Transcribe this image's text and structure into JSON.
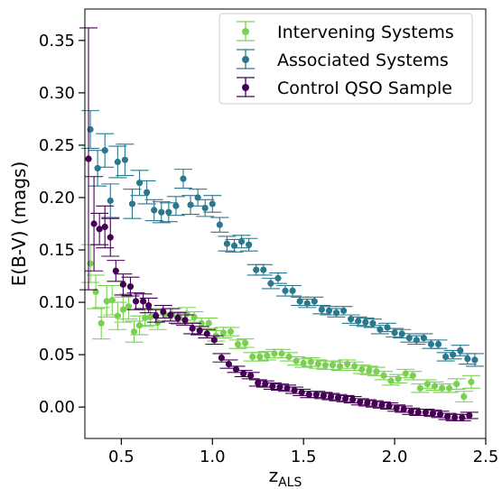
{
  "chart_data": {
    "type": "scatter",
    "title": "",
    "xlabel": "z",
    "xlabel_sub": "ALS",
    "ylabel": "E(B-V) (mags)",
    "xlim": [
      0.3,
      2.5
    ],
    "ylim": [
      -0.03,
      0.38
    ],
    "x_ticks": [
      0.5,
      1.0,
      1.5,
      2.0,
      2.5
    ],
    "x_tick_labels": [
      "0.5",
      "1.0",
      "1.5",
      "2.0",
      "2.5"
    ],
    "y_ticks": [
      0.0,
      0.05,
      0.1,
      0.15,
      0.2,
      0.25,
      0.3,
      0.35
    ],
    "y_tick_labels": [
      "0.00",
      "0.05",
      "0.10",
      "0.15",
      "0.20",
      "0.25",
      "0.30",
      "0.35"
    ],
    "grid": false,
    "legend_position": "top-right",
    "series": [
      {
        "name": "Intervening Systems",
        "color": "#7ad151",
        "x": [
          0.33,
          0.36,
          0.39,
          0.42,
          0.45,
          0.48,
          0.51,
          0.54,
          0.57,
          0.6,
          0.63,
          0.66,
          0.7,
          0.74,
          0.78,
          0.82,
          0.86,
          0.9,
          0.94,
          0.98,
          1.02,
          1.06,
          1.1,
          1.14,
          1.18,
          1.22,
          1.26,
          1.3,
          1.34,
          1.38,
          1.42,
          1.46,
          1.5,
          1.54,
          1.58,
          1.62,
          1.66,
          1.7,
          1.74,
          1.78,
          1.82,
          1.86,
          1.9,
          1.94,
          1.98,
          2.02,
          2.06,
          2.1,
          2.14,
          2.18,
          2.22,
          2.26,
          2.3,
          2.34,
          2.38,
          2.42
        ],
        "y": [
          0.137,
          0.11,
          0.08,
          0.101,
          0.102,
          0.087,
          0.093,
          0.096,
          0.072,
          0.078,
          0.085,
          0.086,
          0.081,
          0.088,
          0.088,
          0.085,
          0.089,
          0.086,
          0.08,
          0.08,
          0.068,
          0.071,
          0.072,
          0.06,
          0.061,
          0.048,
          0.048,
          0.049,
          0.051,
          0.051,
          0.048,
          0.044,
          0.042,
          0.043,
          0.041,
          0.04,
          0.04,
          0.039,
          0.041,
          0.039,
          0.036,
          0.035,
          0.034,
          0.03,
          0.025,
          0.027,
          0.032,
          0.03,
          0.018,
          0.022,
          0.02,
          0.018,
          0.018,
          0.022,
          0.01,
          0.024
        ],
        "yerr": [
          0.018,
          0.016,
          0.015,
          0.015,
          0.014,
          0.013,
          0.012,
          0.012,
          0.01,
          0.009,
          0.008,
          0.008,
          0.007,
          0.006,
          0.006,
          0.006,
          0.006,
          0.005,
          0.005,
          0.005,
          0.005,
          0.005,
          0.004,
          0.004,
          0.004,
          0.004,
          0.004,
          0.004,
          0.004,
          0.004,
          0.004,
          0.004,
          0.004,
          0.004,
          0.004,
          0.004,
          0.004,
          0.004,
          0.004,
          0.004,
          0.004,
          0.004,
          0.004,
          0.004,
          0.004,
          0.004,
          0.004,
          0.004,
          0.004,
          0.004,
          0.004,
          0.004,
          0.004,
          0.005,
          0.005,
          0.006
        ]
      },
      {
        "name": "Associated Systems",
        "color": "#2a788e",
        "x": [
          0.33,
          0.37,
          0.41,
          0.44,
          0.48,
          0.52,
          0.56,
          0.6,
          0.64,
          0.68,
          0.72,
          0.76,
          0.8,
          0.84,
          0.88,
          0.92,
          0.96,
          1.0,
          1.04,
          1.08,
          1.12,
          1.16,
          1.2,
          1.24,
          1.28,
          1.32,
          1.36,
          1.4,
          1.44,
          1.48,
          1.52,
          1.56,
          1.6,
          1.64,
          1.68,
          1.72,
          1.76,
          1.8,
          1.84,
          1.88,
          1.92,
          1.96,
          2.0,
          2.04,
          2.08,
          2.12,
          2.16,
          2.2,
          2.24,
          2.28,
          2.32,
          2.36,
          2.4,
          2.44
        ],
        "y": [
          0.265,
          0.228,
          0.245,
          0.197,
          0.234,
          0.236,
          0.194,
          0.214,
          0.205,
          0.188,
          0.186,
          0.186,
          0.192,
          0.218,
          0.193,
          0.2,
          0.19,
          0.194,
          0.174,
          0.156,
          0.154,
          0.158,
          0.155,
          0.131,
          0.131,
          0.118,
          0.123,
          0.111,
          0.111,
          0.101,
          0.099,
          0.101,
          0.093,
          0.092,
          0.09,
          0.092,
          0.084,
          0.082,
          0.081,
          0.08,
          0.074,
          0.076,
          0.071,
          0.07,
          0.066,
          0.064,
          0.066,
          0.06,
          0.06,
          0.048,
          0.05,
          0.054,
          0.046,
          0.045
        ],
        "yerr": [
          0.018,
          0.017,
          0.016,
          0.016,
          0.015,
          0.015,
          0.014,
          0.012,
          0.011,
          0.01,
          0.01,
          0.009,
          0.009,
          0.009,
          0.009,
          0.008,
          0.008,
          0.008,
          0.007,
          0.007,
          0.006,
          0.006,
          0.006,
          0.005,
          0.005,
          0.005,
          0.005,
          0.005,
          0.005,
          0.004,
          0.004,
          0.004,
          0.004,
          0.004,
          0.004,
          0.004,
          0.004,
          0.004,
          0.004,
          0.004,
          0.004,
          0.004,
          0.004,
          0.004,
          0.004,
          0.004,
          0.004,
          0.004,
          0.004,
          0.004,
          0.004,
          0.005,
          0.005,
          0.006
        ]
      },
      {
        "name": "Control QSO Sample",
        "color": "#440154",
        "x": [
          0.32,
          0.35,
          0.38,
          0.41,
          0.44,
          0.47,
          0.51,
          0.55,
          0.58,
          0.62,
          0.65,
          0.69,
          0.73,
          0.77,
          0.81,
          0.85,
          0.89,
          0.93,
          0.97,
          1.01,
          1.05,
          1.09,
          1.13,
          1.17,
          1.21,
          1.25,
          1.29,
          1.33,
          1.37,
          1.41,
          1.45,
          1.49,
          1.53,
          1.57,
          1.61,
          1.65,
          1.69,
          1.73,
          1.77,
          1.81,
          1.85,
          1.89,
          1.93,
          1.97,
          2.01,
          2.05,
          2.09,
          2.13,
          2.17,
          2.21,
          2.25,
          2.29,
          2.33,
          2.37,
          2.41
        ],
        "y": [
          0.237,
          0.175,
          0.17,
          0.172,
          0.162,
          0.13,
          0.117,
          0.115,
          0.101,
          0.101,
          0.097,
          0.087,
          0.091,
          0.088,
          0.085,
          0.083,
          0.075,
          0.073,
          0.07,
          0.064,
          0.047,
          0.041,
          0.036,
          0.032,
          0.03,
          0.023,
          0.022,
          0.02,
          0.019,
          0.018,
          0.016,
          0.014,
          0.012,
          0.012,
          0.011,
          0.01,
          0.009,
          0.008,
          0.007,
          0.005,
          0.004,
          0.003,
          0.002,
          0.001,
          -0.001,
          -0.002,
          -0.004,
          -0.005,
          -0.005,
          -0.006,
          -0.007,
          -0.009,
          -0.01,
          -0.01,
          -0.008
        ],
        "yerr": [
          0.125,
          0.045,
          0.015,
          0.02,
          0.018,
          0.01,
          0.01,
          0.009,
          0.008,
          0.007,
          0.007,
          0.006,
          0.006,
          0.006,
          0.005,
          0.005,
          0.005,
          0.004,
          0.004,
          0.004,
          0.004,
          0.004,
          0.003,
          0.003,
          0.003,
          0.003,
          0.003,
          0.003,
          0.003,
          0.003,
          0.003,
          0.003,
          0.003,
          0.003,
          0.003,
          0.003,
          0.003,
          0.003,
          0.003,
          0.003,
          0.003,
          0.003,
          0.003,
          0.003,
          0.003,
          0.003,
          0.003,
          0.003,
          0.003,
          0.003,
          0.003,
          0.003,
          0.003,
          0.003,
          0.003
        ]
      }
    ]
  }
}
